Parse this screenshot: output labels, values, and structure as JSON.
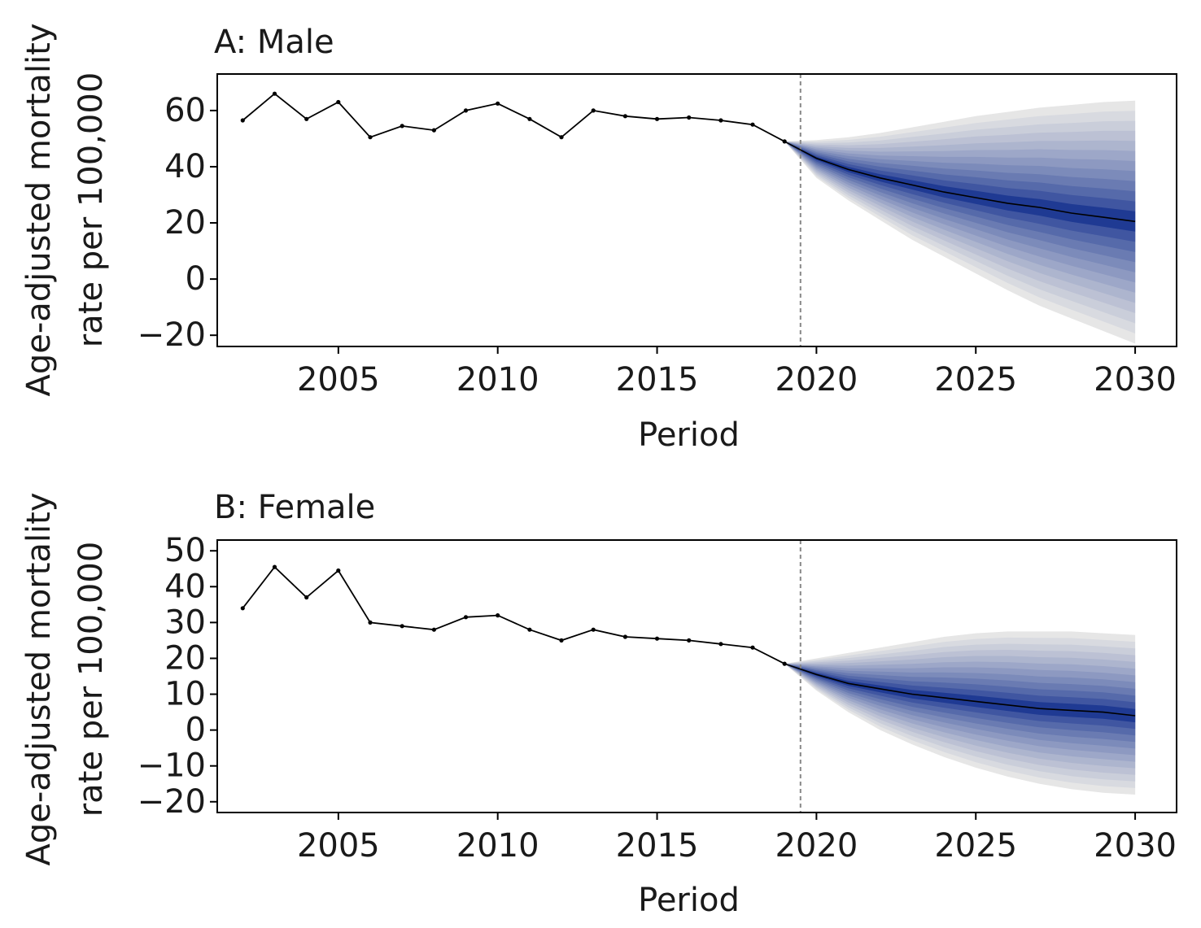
{
  "chart_data": [
    {
      "type": "line",
      "title": "A: Male",
      "xlabel": "Period",
      "ylabel_line1": "Age-adjusted mortality",
      "ylabel_line2": "rate per 100,000",
      "xlim": [
        2001.2,
        2031.3
      ],
      "ylim": [
        -24,
        73
      ],
      "xticks": [
        2005,
        2010,
        2015,
        2020,
        2025,
        2030
      ],
      "yticks": [
        -20,
        0,
        20,
        40,
        60
      ],
      "xtick_labels": [
        "2005",
        "2010",
        "2015",
        "2020",
        "2025",
        "2030"
      ],
      "ytick_labels": [
        "−20",
        "0",
        "20",
        "40",
        "60"
      ],
      "projection_start": 2019.5,
      "series": [
        {
          "role": "observed",
          "x": [
            2002,
            2003,
            2004,
            2005,
            2006,
            2007,
            2008,
            2009,
            2010,
            2011,
            2012,
            2013,
            2014,
            2015,
            2016,
            2017,
            2018,
            2019
          ],
          "y": [
            56.5,
            66,
            57,
            63,
            50.5,
            54.5,
            53,
            60,
            62.5,
            57,
            50.5,
            60,
            58,
            57,
            57.5,
            56.5,
            55,
            49
          ]
        },
        {
          "role": "projection_median",
          "x": [
            2019,
            2020,
            2021,
            2022,
            2023,
            2024,
            2025,
            2026,
            2027,
            2028,
            2029,
            2030
          ],
          "y": [
            49,
            43,
            39,
            36,
            33.5,
            31,
            29,
            27,
            25.5,
            23.5,
            22,
            20.5
          ]
        }
      ],
      "fan": {
        "x": [
          2019,
          2020,
          2021,
          2022,
          2023,
          2024,
          2025,
          2026,
          2027,
          2028,
          2029,
          2030
        ],
        "upper": [
          49,
          49.5,
          50.5,
          52,
          54,
          56,
          58,
          59.5,
          61,
          62,
          63,
          63.5
        ],
        "lower": [
          49,
          36,
          28,
          21,
          14,
          8,
          2,
          -4,
          -9.5,
          -14,
          -18.5,
          -23
        ]
      },
      "colors": {
        "fan_inner": "#1f3a93",
        "fan_outer": "#e6e6e6",
        "line": "#000000",
        "vline": "#888888"
      }
    },
    {
      "type": "line",
      "title": "B: Female",
      "xlabel": "Period",
      "ylabel_line1": "Age-adjusted mortality",
      "ylabel_line2": "rate per 100,000",
      "xlim": [
        2001.2,
        2031.3
      ],
      "ylim": [
        -23,
        53
      ],
      "xticks": [
        2005,
        2010,
        2015,
        2020,
        2025,
        2030
      ],
      "yticks": [
        -20,
        -10,
        0,
        10,
        20,
        30,
        40,
        50
      ],
      "xtick_labels": [
        "2005",
        "2010",
        "2015",
        "2020",
        "2025",
        "2030"
      ],
      "ytick_labels": [
        "−20",
        "−10",
        "0",
        "10",
        "20",
        "30",
        "40",
        "50"
      ],
      "projection_start": 2019.5,
      "series": [
        {
          "role": "observed",
          "x": [
            2002,
            2003,
            2004,
            2005,
            2006,
            2007,
            2008,
            2009,
            2010,
            2011,
            2012,
            2013,
            2014,
            2015,
            2016,
            2017,
            2018,
            2019
          ],
          "y": [
            34,
            45.5,
            37,
            44.5,
            30,
            29,
            28,
            31.5,
            32,
            28,
            25,
            28,
            26,
            25.5,
            25,
            24,
            23,
            18.5
          ]
        },
        {
          "role": "projection_median",
          "x": [
            2019,
            2020,
            2021,
            2022,
            2023,
            2024,
            2025,
            2026,
            2027,
            2028,
            2029,
            2030
          ],
          "y": [
            18.5,
            15.5,
            13,
            11.5,
            10,
            9,
            8,
            7,
            6,
            5.5,
            5,
            4
          ]
        }
      ],
      "fan": {
        "x": [
          2019,
          2020,
          2021,
          2022,
          2023,
          2024,
          2025,
          2026,
          2027,
          2028,
          2029,
          2030
        ],
        "upper": [
          18.5,
          20,
          21.5,
          23,
          24.5,
          26,
          27,
          27.5,
          27.5,
          27.5,
          27,
          26.5
        ],
        "lower": [
          18.5,
          11,
          5,
          0,
          -4,
          -7.5,
          -10.5,
          -13,
          -15,
          -16.5,
          -17.5,
          -18
        ]
      },
      "colors": {
        "fan_inner": "#1f3a93",
        "fan_outer": "#e6e6e6",
        "line": "#000000",
        "vline": "#888888"
      }
    }
  ]
}
